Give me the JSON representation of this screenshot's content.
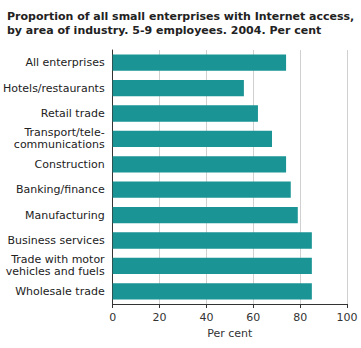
{
  "chart_data": {
    "type": "bar",
    "title": "Proportion of all small enterprises with Internet access,\nby area of industry. 5-9 employees. 2004. Per cent",
    "orientation": "horizontal",
    "categories": [
      "All enterprises",
      "Hotels/restaurants",
      "Retail trade",
      "Transport/tele-\ncommunications",
      "Construction",
      "Banking/finance",
      "Manufacturing",
      "Business services",
      "Trade with motor\nvehicles and fuels",
      "Wholesale trade"
    ],
    "values": [
      74,
      56,
      62,
      68,
      74,
      76,
      79,
      85,
      85,
      85
    ],
    "color": "#1a9494",
    "x_label": "Per cent",
    "xlim": [
      0,
      100
    ],
    "xticks": [
      0,
      20,
      40,
      60,
      80,
      100
    ],
    "grid": true
  }
}
